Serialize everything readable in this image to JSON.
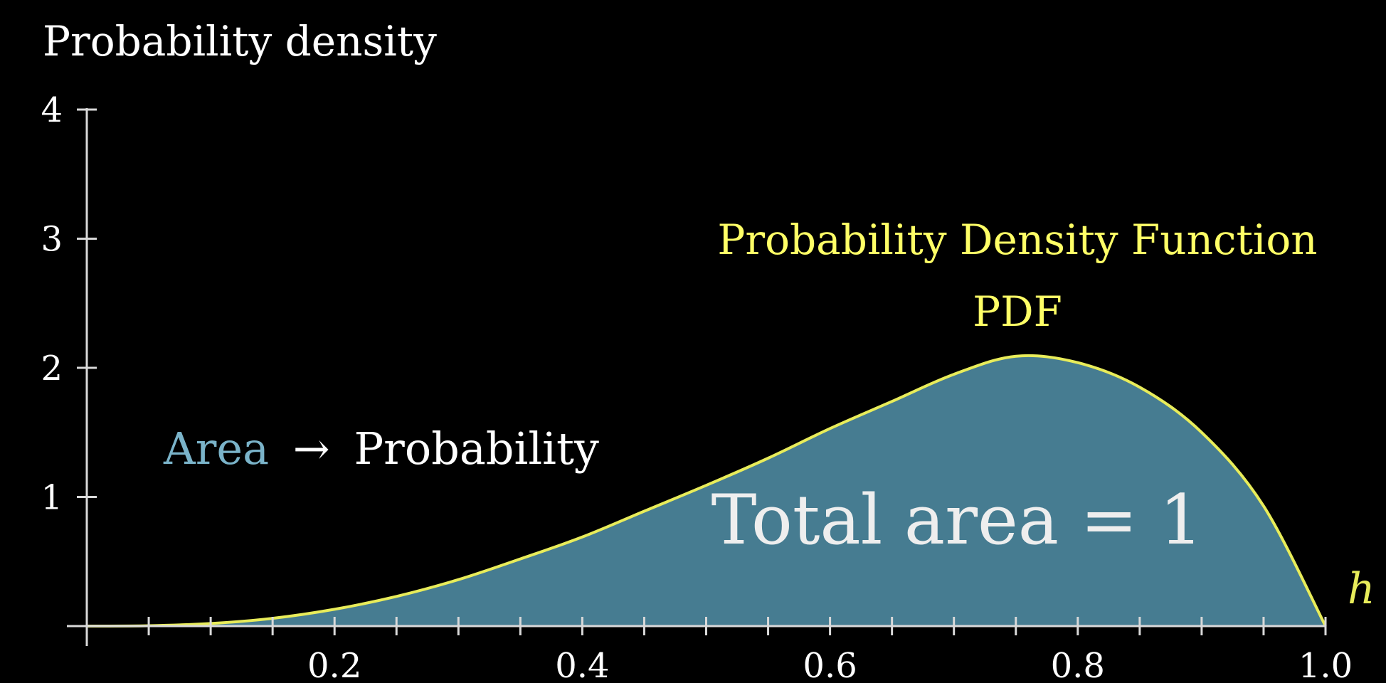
{
  "chart_data": {
    "type": "area",
    "ylabel": "Probability density",
    "xlabel": "h",
    "xlim": [
      0,
      1
    ],
    "ylim": [
      0,
      4
    ],
    "x_ticks": [
      0.2,
      0.4,
      0.6,
      0.8,
      1.0
    ],
    "x_tick_labels": [
      "0.2",
      "0.4",
      "0.6",
      "0.8",
      "1.0"
    ],
    "x_minor_ticks": [
      0.05,
      0.1,
      0.15,
      0.25,
      0.3,
      0.35,
      0.45,
      0.5,
      0.55,
      0.65,
      0.7,
      0.75,
      0.85,
      0.9,
      0.95
    ],
    "y_ticks": [
      1,
      2,
      3,
      4
    ],
    "y_tick_labels": [
      "1",
      "2",
      "3",
      "4"
    ],
    "grid": false,
    "series": [
      {
        "x": [
          0,
          0.05,
          0.1,
          0.15,
          0.2,
          0.25,
          0.3,
          0.35,
          0.4,
          0.45,
          0.5,
          0.55,
          0.6,
          0.65,
          0.7,
          0.75,
          0.8,
          0.85,
          0.9,
          0.95,
          1.0
        ],
        "y": [
          0,
          0.003,
          0.02,
          0.06,
          0.13,
          0.23,
          0.36,
          0.52,
          0.69,
          0.89,
          1.09,
          1.3,
          1.53,
          1.74,
          1.95,
          2.09,
          2.04,
          1.85,
          1.5,
          0.93,
          0
        ]
      }
    ],
    "annotations": {
      "curve_title": "Probability Density Function",
      "curve_subtitle": "PDF",
      "area_word": "Area",
      "arrow": "→",
      "probability_word": "Probability",
      "total_area": "Total area = 1"
    },
    "colors": {
      "background": "#000000",
      "axis": "#d9d9d9",
      "text": "#ffffff",
      "curve": "#e8ec5a",
      "fill": "#4a8399",
      "area_word": "#7ab3c9",
      "pdf_label": "#ffff66"
    }
  }
}
